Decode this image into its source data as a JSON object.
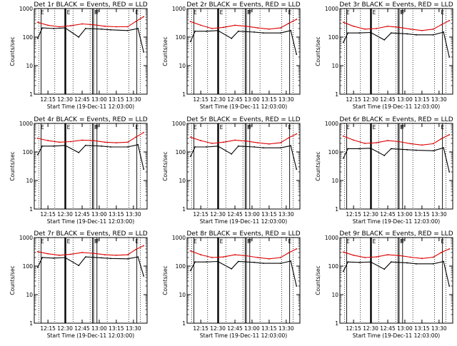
{
  "colors": {
    "events": "#000000",
    "lld": "#dd0000",
    "frame": "#000000",
    "background": "#ffffff"
  },
  "chart_data": [
    {
      "type": "line",
      "title": "Det 1r BLACK = Events, RED = LLD",
      "xlabel": "Start Time (19-Dec-11 12:03:00)",
      "ylabel": "Counts/sec",
      "yscale": "log",
      "ylim": [
        1,
        1000
      ],
      "yticks": [
        "1",
        "10",
        "100",
        "1000"
      ],
      "xticks": [
        "12:15",
        "12:30",
        "12:45",
        "13:00",
        "13:15",
        "13:30"
      ],
      "markers": [
        "E",
        "E",
        "F",
        "F",
        "F",
        "E"
      ],
      "series": [
        {
          "name": "Events",
          "x": [
            "12:06",
            "12:10",
            "12:20",
            "12:30",
            "12:42",
            "12:48",
            "13:02",
            "13:10",
            "13:25",
            "13:34",
            "13:39"
          ],
          "values": [
            90,
            210,
            200,
            210,
            100,
            200,
            190,
            180,
            170,
            200,
            30
          ]
        },
        {
          "name": "LLD",
          "x": [
            "12:06",
            "12:15",
            "12:25",
            "12:35",
            "12:45",
            "12:55",
            "13:05",
            "13:15",
            "13:25",
            "13:32",
            "13:39"
          ],
          "values": [
            330,
            260,
            230,
            250,
            290,
            270,
            240,
            230,
            230,
            350,
            520
          ]
        }
      ]
    },
    {
      "type": "line",
      "title": "Det 2r BLACK = Events, RED = LLD",
      "xlabel": "Start Time (19-Dec-11 12:03:00)",
      "ylabel": "Counts/sec",
      "yscale": "log",
      "ylim": [
        1,
        1000
      ],
      "yticks": [
        "1",
        "10",
        "100",
        "1000"
      ],
      "xticks": [
        "12:15",
        "12:30",
        "12:45",
        "13:00",
        "13:15",
        "13:30"
      ],
      "markers": [
        "E",
        "E",
        "F",
        "F",
        "F",
        "E"
      ],
      "series": [
        {
          "name": "Events",
          "x": [
            "12:06",
            "12:10",
            "12:20",
            "12:30",
            "12:42",
            "12:48",
            "13:02",
            "13:10",
            "13:25",
            "13:34",
            "13:39"
          ],
          "values": [
            70,
            160,
            160,
            170,
            90,
            160,
            150,
            140,
            140,
            170,
            25
          ]
        },
        {
          "name": "LLD",
          "x": [
            "12:06",
            "12:15",
            "12:25",
            "12:35",
            "12:45",
            "12:55",
            "13:05",
            "13:15",
            "13:25",
            "13:32",
            "13:39"
          ],
          "values": [
            350,
            260,
            200,
            220,
            260,
            240,
            210,
            190,
            210,
            300,
            420
          ]
        }
      ]
    },
    {
      "type": "line",
      "title": "Det 3r BLACK = Events, RED = LLD",
      "xlabel": "Start Time (19-Dec-11 12:03:00)",
      "ylabel": "Counts/sec",
      "yscale": "log",
      "ylim": [
        1,
        1000
      ],
      "yticks": [
        "1",
        "10",
        "100",
        "1000"
      ],
      "xticks": [
        "12:15",
        "12:30",
        "12:45",
        "13:00",
        "13:15",
        "13:30"
      ],
      "markers": [
        "E",
        "E",
        "F",
        "F",
        "F",
        "E"
      ],
      "series": [
        {
          "name": "Events",
          "x": [
            "12:06",
            "12:10",
            "12:20",
            "12:30",
            "12:42",
            "12:48",
            "13:02",
            "13:10",
            "13:25",
            "13:34",
            "13:39"
          ],
          "values": [
            65,
            140,
            140,
            145,
            80,
            140,
            130,
            120,
            120,
            150,
            20
          ]
        },
        {
          "name": "LLD",
          "x": [
            "12:06",
            "12:15",
            "12:25",
            "12:35",
            "12:45",
            "12:55",
            "13:05",
            "13:15",
            "13:25",
            "13:32",
            "13:39"
          ],
          "values": [
            330,
            240,
            190,
            200,
            240,
            220,
            190,
            170,
            190,
            270,
            380
          ]
        }
      ]
    },
    {
      "type": "line",
      "title": "Det 4r BLACK = Events, RED = LLD",
      "xlabel": "Start Time (19-Dec-11 12:03:00)",
      "ylabel": "Counts/sec",
      "yscale": "log",
      "ylim": [
        1,
        1000
      ],
      "yticks": [
        "1",
        "10",
        "100",
        "1000"
      ],
      "xticks": [
        "12:15",
        "12:30",
        "12:45",
        "13:00",
        "13:15",
        "13:30"
      ],
      "markers": [
        "E",
        "E",
        "F",
        "F",
        "F",
        "E"
      ],
      "series": [
        {
          "name": "Events",
          "x": [
            "12:06",
            "12:10",
            "12:20",
            "12:30",
            "12:42",
            "12:48",
            "13:02",
            "13:10",
            "13:25",
            "13:34",
            "13:39"
          ],
          "values": [
            80,
            160,
            160,
            170,
            95,
            170,
            160,
            150,
            150,
            180,
            25
          ]
        },
        {
          "name": "LLD",
          "x": [
            "12:06",
            "12:15",
            "12:25",
            "12:35",
            "12:45",
            "12:55",
            "13:05",
            "13:15",
            "13:25",
            "13:32",
            "13:39"
          ],
          "values": [
            300,
            250,
            220,
            230,
            260,
            250,
            220,
            210,
            220,
            330,
            480
          ]
        }
      ]
    },
    {
      "type": "line",
      "title": "Det 5r BLACK = Events, RED = LLD",
      "xlabel": "Start Time (19-Dec-11 12:03:00)",
      "ylabel": "Counts/sec",
      "yscale": "log",
      "ylim": [
        1,
        1000
      ],
      "yticks": [
        "1",
        "10",
        "100",
        "1000"
      ],
      "xticks": [
        "12:15",
        "12:30",
        "12:45",
        "13:00",
        "13:15",
        "13:30"
      ],
      "markers": [
        "E",
        "E",
        "F",
        "F",
        "F",
        "E"
      ],
      "series": [
        {
          "name": "Events",
          "x": [
            "12:06",
            "12:10",
            "12:20",
            "12:30",
            "12:42",
            "12:48",
            "13:02",
            "13:10",
            "13:25",
            "13:34",
            "13:39"
          ],
          "values": [
            70,
            150,
            150,
            160,
            85,
            160,
            150,
            140,
            140,
            165,
            25
          ]
        },
        {
          "name": "LLD",
          "x": [
            "12:06",
            "12:15",
            "12:25",
            "12:35",
            "12:45",
            "12:55",
            "13:05",
            "13:15",
            "13:25",
            "13:32",
            "13:39"
          ],
          "values": [
            330,
            250,
            200,
            220,
            260,
            240,
            210,
            190,
            210,
            310,
            430
          ]
        }
      ]
    },
    {
      "type": "line",
      "title": "Det 6r BLACK = Events, RED = LLD",
      "xlabel": "Start Time (19-Dec-11 12:03:00)",
      "ylabel": "Counts/sec",
      "yscale": "log",
      "ylim": [
        1,
        1000
      ],
      "yticks": [
        "1",
        "10",
        "100",
        "1000"
      ],
      "xticks": [
        "12:15",
        "12:30",
        "12:45",
        "13:00",
        "13:15",
        "13:30"
      ],
      "markers": [
        "E",
        "E",
        "F",
        "F",
        "F",
        "E"
      ],
      "series": [
        {
          "name": "Events",
          "x": [
            "12:06",
            "12:10",
            "12:20",
            "12:30",
            "12:42",
            "12:48",
            "13:02",
            "13:10",
            "13:25",
            "13:34",
            "13:39"
          ],
          "values": [
            60,
            130,
            130,
            135,
            75,
            130,
            120,
            115,
            110,
            140,
            20
          ]
        },
        {
          "name": "LLD",
          "x": [
            "12:06",
            "12:15",
            "12:25",
            "12:35",
            "12:45",
            "12:55",
            "13:05",
            "13:15",
            "13:25",
            "13:32",
            "13:39"
          ],
          "values": [
            360,
            260,
            200,
            210,
            250,
            230,
            195,
            175,
            195,
            290,
            400
          ]
        }
      ]
    },
    {
      "type": "line",
      "title": "Det 7r BLACK = Events, RED = LLD",
      "xlabel": "Start Time (19-Dec-11 12:03:00)",
      "ylabel": "Counts/sec",
      "yscale": "log",
      "ylim": [
        1,
        1000
      ],
      "yticks": [
        "1",
        "10",
        "100",
        "1000"
      ],
      "xticks": [
        "12:15",
        "12:30",
        "12:45",
        "13:00",
        "13:15",
        "13:30"
      ],
      "markers": [
        "E",
        "E",
        "F",
        "F",
        "F",
        "E"
      ],
      "series": [
        {
          "name": "Events",
          "x": [
            "12:06",
            "12:10",
            "12:20",
            "12:30",
            "12:42",
            "12:48",
            "13:02",
            "13:10",
            "13:25",
            "13:34",
            "13:39"
          ],
          "values": [
            90,
            200,
            190,
            200,
            105,
            210,
            195,
            185,
            180,
            210,
            45
          ]
        },
        {
          "name": "LLD",
          "x": [
            "12:06",
            "12:15",
            "12:25",
            "12:35",
            "12:45",
            "12:55",
            "13:05",
            "13:15",
            "13:25",
            "13:32",
            "13:39"
          ],
          "values": [
            320,
            270,
            240,
            260,
            300,
            280,
            250,
            240,
            250,
            380,
            520
          ]
        }
      ]
    },
    {
      "type": "line",
      "title": "Det 8r BLACK = Events, RED = LLD",
      "xlabel": "Start Time (19-Dec-11 12:03:00)",
      "ylabel": "Counts/sec",
      "yscale": "log",
      "ylim": [
        1,
        1000
      ],
      "yticks": [
        "1",
        "10",
        "100",
        "1000"
      ],
      "xticks": [
        "12:15",
        "12:30",
        "12:45",
        "13:00",
        "13:15",
        "13:30"
      ],
      "markers": [
        "E",
        "E",
        "F",
        "F",
        "F",
        "E"
      ],
      "series": [
        {
          "name": "Events",
          "x": [
            "12:06",
            "12:10",
            "12:20",
            "12:30",
            "12:42",
            "12:48",
            "13:02",
            "13:10",
            "13:25",
            "13:34",
            "13:39"
          ],
          "values": [
            70,
            140,
            140,
            145,
            80,
            145,
            135,
            125,
            125,
            150,
            20
          ]
        },
        {
          "name": "LLD",
          "x": [
            "12:06",
            "12:15",
            "12:25",
            "12:35",
            "12:45",
            "12:55",
            "13:05",
            "13:15",
            "13:25",
            "13:32",
            "13:39"
          ],
          "values": [
            340,
            250,
            200,
            210,
            250,
            230,
            200,
            180,
            200,
            290,
            400
          ]
        }
      ]
    },
    {
      "type": "line",
      "title": "Det 9r BLACK = Events, RED = LLD",
      "xlabel": "Start Time (19-Dec-11 12:03:00)",
      "ylabel": "Counts/sec",
      "yscale": "log",
      "ylim": [
        1,
        1000
      ],
      "yticks": [
        "1",
        "10",
        "100",
        "1000"
      ],
      "xticks": [
        "12:15",
        "12:30",
        "12:45",
        "13:00",
        "13:15",
        "13:30"
      ],
      "markers": [
        "E",
        "E",
        "F",
        "F",
        "F",
        "E"
      ],
      "series": [
        {
          "name": "Events",
          "x": [
            "12:06",
            "12:10",
            "12:20",
            "12:30",
            "12:42",
            "12:48",
            "13:02",
            "13:10",
            "13:25",
            "13:34",
            "13:39"
          ],
          "values": [
            65,
            140,
            135,
            140,
            78,
            140,
            130,
            120,
            120,
            145,
            20
          ]
        },
        {
          "name": "LLD",
          "x": [
            "12:06",
            "12:15",
            "12:25",
            "12:35",
            "12:45",
            "12:55",
            "13:05",
            "13:15",
            "13:25",
            "13:32",
            "13:39"
          ],
          "values": [
            310,
            240,
            200,
            210,
            250,
            235,
            205,
            185,
            205,
            300,
            400
          ]
        }
      ]
    }
  ]
}
